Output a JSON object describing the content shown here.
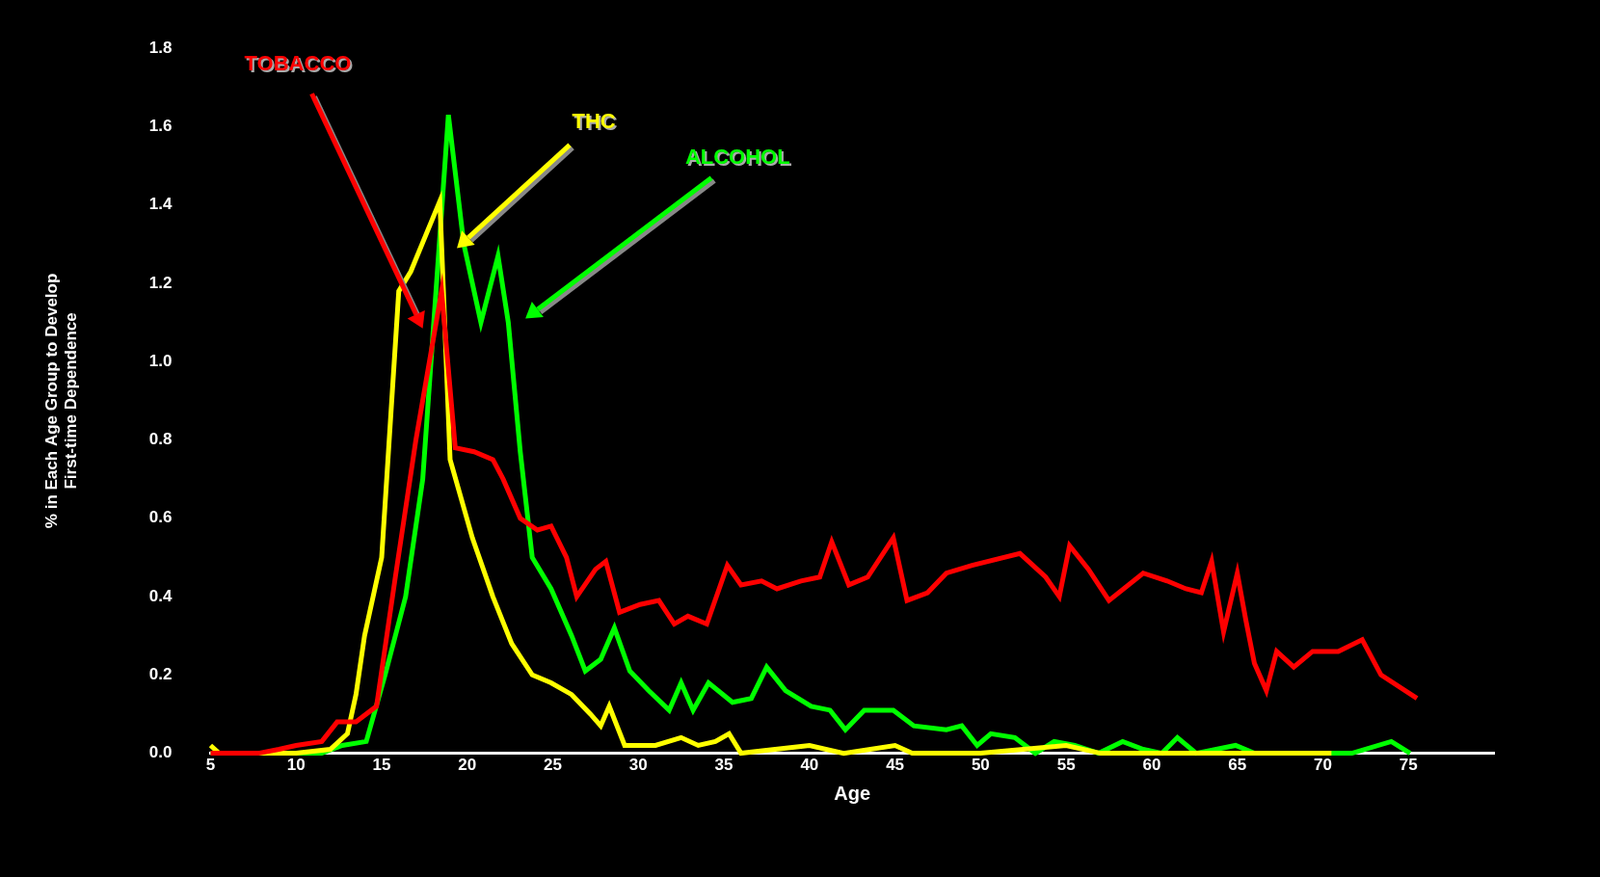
{
  "chart_data": {
    "type": "line",
    "xlabel": "Age",
    "ylabel": [
      "% in Each Age Group to Develop",
      "First-time Dependence"
    ],
    "xlim": [
      5,
      80
    ],
    "xticks": [
      5,
      10,
      15,
      20,
      25,
      30,
      35,
      40,
      45,
      50,
      55,
      60,
      65,
      70,
      75
    ],
    "ylim": [
      0,
      1.8
    ],
    "yticks": [
      {
        "value": 0,
        "label": "0.0"
      },
      {
        "value": 0.2,
        "label": "0.2"
      },
      {
        "value": 0.4,
        "label": "0.4"
      },
      {
        "value": 0.6,
        "label": "0.6"
      },
      {
        "value": 0.8,
        "label": "0.8"
      },
      {
        "value": 1.0,
        "label": "1.0"
      },
      {
        "value": 1.2,
        "label": "1.2"
      },
      {
        "value": 1.4,
        "label": "1.4"
      },
      {
        "value": 1.6,
        "label": "1.6"
      },
      {
        "value": 1.8,
        "label": "1.8"
      }
    ],
    "grid": false,
    "series": [
      {
        "name": "TOBACCO",
        "color": "#ff0000",
        "x": [
          5,
          7.8,
          9,
          10,
          11.5,
          12.4,
          13.5,
          14.7,
          15.8,
          17,
          18.5,
          19.3,
          20.4,
          21.5,
          22.1,
          23.1,
          24.1,
          24.9,
          25.8,
          26.4,
          27.5,
          28.1,
          28.9,
          30.1,
          31.2,
          32.1,
          32.9,
          34,
          35.2,
          36,
          37.2,
          38.1,
          39.5,
          40.6,
          41.3,
          42.3,
          43.4,
          44.9,
          45.7,
          46.9,
          48,
          49.5,
          52.3,
          53.8,
          54.6,
          55.2,
          56.3,
          57.5,
          59.5,
          60.9,
          62,
          62.9,
          63.5,
          64.2,
          65,
          65.5,
          66,
          66.7,
          67.3,
          68.3,
          69.4,
          70.9,
          72.3,
          73.4,
          75.5
        ],
        "values": [
          0,
          0,
          0.01,
          0.02,
          0.03,
          0.08,
          0.08,
          0.12,
          0.45,
          0.8,
          1.18,
          0.78,
          0.77,
          0.75,
          0.7,
          0.6,
          0.57,
          0.58,
          0.5,
          0.4,
          0.47,
          0.49,
          0.36,
          0.38,
          0.39,
          0.33,
          0.35,
          0.33,
          0.48,
          0.43,
          0.44,
          0.42,
          0.44,
          0.45,
          0.54,
          0.43,
          0.45,
          0.55,
          0.39,
          0.41,
          0.46,
          0.48,
          0.51,
          0.45,
          0.4,
          0.53,
          0.47,
          0.39,
          0.46,
          0.44,
          0.42,
          0.41,
          0.49,
          0.31,
          0.46,
          0.34,
          0.23,
          0.16,
          0.26,
          0.22,
          0.26,
          0.26,
          0.29,
          0.2,
          0.14
        ]
      },
      {
        "name": "THC",
        "color": "#ffff00",
        "x": [
          5,
          5.5,
          8,
          10,
          12,
          13,
          13.5,
          14,
          15,
          16,
          16.7,
          18.4,
          19,
          20.3,
          21.5,
          22.6,
          23.8,
          24.9,
          26.1,
          27.2,
          27.8,
          28.3,
          29.2,
          31,
          32.5,
          33.5,
          34.5,
          35.3,
          36,
          38,
          40,
          42,
          45,
          46,
          48,
          50,
          55,
          57,
          60,
          65,
          70.5
        ],
        "values": [
          0.02,
          0,
          0,
          0,
          0.01,
          0.05,
          0.15,
          0.3,
          0.5,
          1.18,
          1.23,
          1.41,
          0.75,
          0.55,
          0.4,
          0.28,
          0.2,
          0.18,
          0.15,
          0.1,
          0.07,
          0.12,
          0.02,
          0.02,
          0.04,
          0.02,
          0.03,
          0.05,
          0,
          0.01,
          0.02,
          0,
          0.02,
          0,
          0,
          0,
          0.02,
          0,
          0,
          0,
          0
        ]
      },
      {
        "name": "ALCOHOL",
        "color": "#00ff00",
        "x": [
          5,
          9,
          11.5,
          12.7,
          14.1,
          15.2,
          16.4,
          17.4,
          18.9,
          19.8,
          20.8,
          21.8,
          22.4,
          23.1,
          23.8,
          24.9,
          26.1,
          26.9,
          27.8,
          28.6,
          29.5,
          30.6,
          31.8,
          32.5,
          33.2,
          34.1,
          35.5,
          36.6,
          37.5,
          38.6,
          40.1,
          41.2,
          42.1,
          43.2,
          44.9,
          46.1,
          48,
          48.9,
          49.8,
          50.6,
          52,
          53.2,
          54.3,
          55.5,
          56.9,
          58.3,
          59.5,
          60.6,
          61.5,
          62.6,
          64.9,
          66,
          69.4,
          71.7,
          74,
          75.1
        ],
        "values": [
          0,
          0,
          0,
          0.02,
          0.03,
          0.2,
          0.4,
          0.7,
          1.63,
          1.3,
          1.1,
          1.27,
          1.1,
          0.77,
          0.5,
          0.42,
          0.3,
          0.21,
          0.24,
          0.32,
          0.21,
          0.16,
          0.11,
          0.18,
          0.11,
          0.18,
          0.13,
          0.14,
          0.22,
          0.16,
          0.12,
          0.11,
          0.06,
          0.11,
          0.11,
          0.07,
          0.06,
          0.07,
          0.02,
          0.05,
          0.04,
          0,
          0.03,
          0.02,
          0,
          0.03,
          0.01,
          0,
          0.04,
          0,
          0.02,
          0,
          0,
          0,
          0.03,
          0
        ]
      }
    ],
    "annotations": [
      {
        "text": "TOBACCO",
        "color": "#ff0000",
        "x": 10.1,
        "y": 1.76,
        "arrow_x": 17.4,
        "arrow_y": 1.085
      },
      {
        "text": "THC",
        "color": "#ffff00",
        "x": 27.4,
        "y": 1.61,
        "arrow_x": 19.4,
        "arrow_y": 1.29
      },
      {
        "text": "ALCOHOL",
        "color": "#00ff00",
        "x": 35.8,
        "y": 1.52,
        "arrow_x": 23.4,
        "arrow_y": 1.11
      }
    ]
  }
}
